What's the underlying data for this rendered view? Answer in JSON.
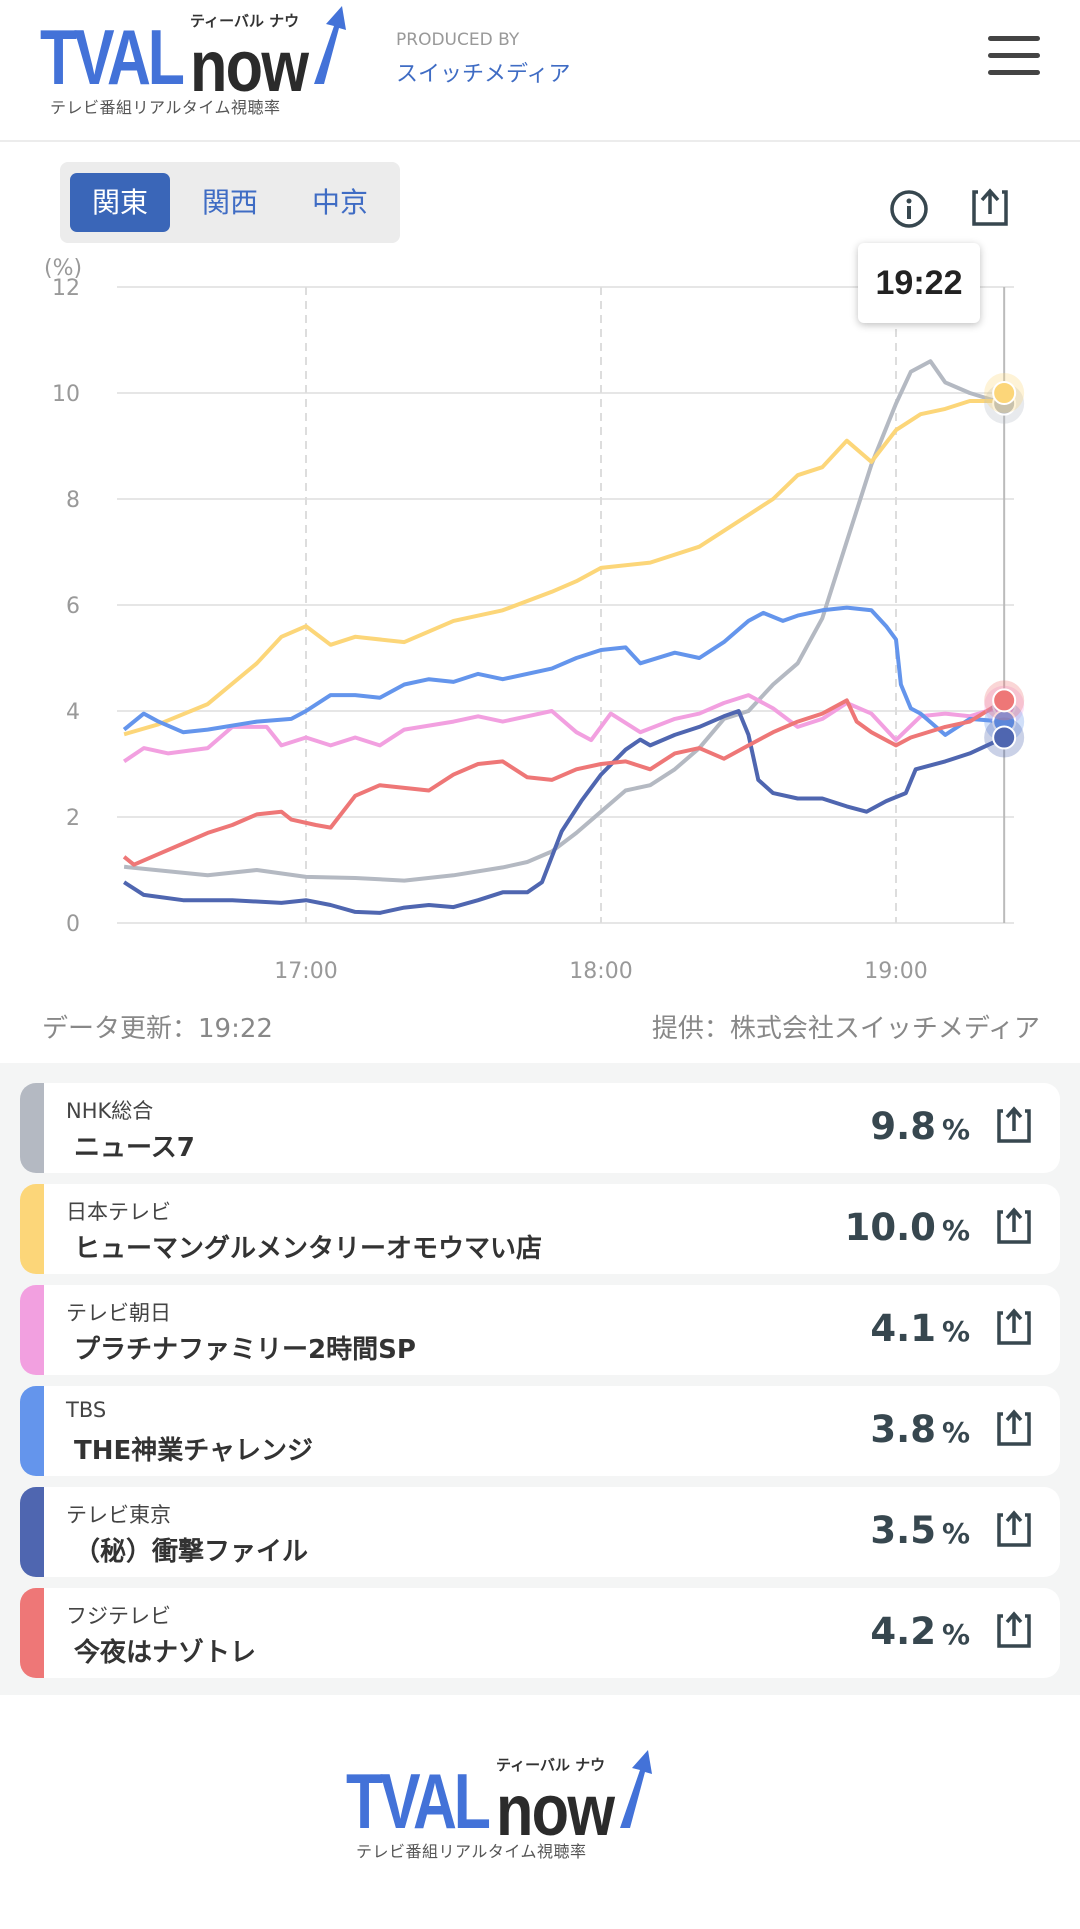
{
  "header": {
    "logo_text": "TVALnow",
    "logo_kana": "ティーバル ナウ",
    "logo_sub": "テレビ番組リアルタイム視聴率",
    "produced_by": "PRODUCED BY",
    "producer": "スイッチメディア"
  },
  "tabs": [
    {
      "label": "関東",
      "active": true
    },
    {
      "label": "関西",
      "active": false
    },
    {
      "label": "中京",
      "active": false
    }
  ],
  "tooltip": "19:22",
  "footer_info": {
    "update": "データ更新：19:22",
    "credit": "提供：株式会社スイッチメディア"
  },
  "chart_data": {
    "type": "line",
    "ylabel": "(%)",
    "ylim": [
      0,
      12
    ],
    "yticks": [
      "0",
      "2",
      "4",
      "6",
      "8",
      "10",
      "12"
    ],
    "xlim_minutes_after_1600": [
      23,
      202
    ],
    "xticks": [
      {
        "label": "17:00",
        "t": 60
      },
      {
        "label": "18:00",
        "t": 120
      },
      {
        "label": "19:00",
        "t": 180
      }
    ],
    "cursor_t": 202,
    "series": [
      {
        "name": "NHK総合",
        "color": "#b4b9c2",
        "t": [
          23,
          40,
          50,
          60,
          70,
          80,
          90,
          100,
          105,
          110,
          115,
          120,
          125,
          130,
          135,
          140,
          145,
          150,
          155,
          160,
          165,
          170,
          175,
          180,
          183,
          187,
          190,
          195,
          202
        ],
        "v": [
          1.06,
          0.9,
          1.0,
          0.87,
          0.85,
          0.8,
          0.9,
          1.05,
          1.15,
          1.35,
          1.7,
          2.1,
          2.5,
          2.6,
          2.9,
          3.3,
          3.85,
          4.0,
          4.5,
          4.9,
          5.75,
          7.2,
          8.65,
          9.8,
          10.4,
          10.6,
          10.2,
          10.0,
          9.8
        ]
      },
      {
        "name": "日本テレビ",
        "color": "#fcd679",
        "t": [
          23,
          30,
          40,
          50,
          55,
          60,
          65,
          70,
          80,
          90,
          100,
          110,
          115,
          120,
          130,
          140,
          145,
          150,
          155,
          160,
          165,
          170,
          175,
          180,
          185,
          190,
          195,
          200,
          202
        ],
        "v": [
          3.56,
          3.75,
          4.13,
          4.9,
          5.4,
          5.6,
          5.25,
          5.4,
          5.3,
          5.7,
          5.9,
          6.25,
          6.45,
          6.7,
          6.8,
          7.1,
          7.4,
          7.7,
          8.0,
          8.45,
          8.6,
          9.1,
          8.7,
          9.3,
          9.6,
          9.7,
          9.85,
          9.85,
          10.0
        ]
      },
      {
        "name": "テレビ朝日",
        "color": "#f2a0e0",
        "t": [
          23,
          27,
          32,
          40,
          45,
          52,
          55,
          60,
          65,
          70,
          75,
          80,
          90,
          95,
          100,
          105,
          110,
          115,
          118,
          122,
          128,
          135,
          140,
          145,
          150,
          155,
          160,
          165,
          170,
          175,
          180,
          185,
          190,
          195,
          202
        ],
        "v": [
          3.05,
          3.3,
          3.2,
          3.3,
          3.7,
          3.7,
          3.35,
          3.5,
          3.35,
          3.5,
          3.35,
          3.65,
          3.8,
          3.9,
          3.8,
          3.9,
          4.0,
          3.6,
          3.45,
          3.95,
          3.6,
          3.85,
          3.95,
          4.15,
          4.3,
          4.05,
          3.7,
          3.85,
          4.15,
          3.95,
          3.45,
          3.9,
          3.95,
          3.9,
          4.1
        ]
      },
      {
        "name": "TBS",
        "color": "#6495ec",
        "t": [
          23,
          27,
          30,
          35,
          40,
          50,
          57,
          60,
          65,
          70,
          75,
          80,
          85,
          90,
          95,
          100,
          110,
          115,
          120,
          125,
          128,
          135,
          140,
          145,
          150,
          153,
          157,
          160,
          165,
          170,
          175,
          178,
          180,
          181,
          183,
          185,
          190,
          195,
          202
        ],
        "v": [
          3.65,
          3.95,
          3.8,
          3.6,
          3.65,
          3.8,
          3.85,
          4.0,
          4.3,
          4.3,
          4.25,
          4.5,
          4.6,
          4.55,
          4.7,
          4.6,
          4.8,
          5.0,
          5.15,
          5.2,
          4.9,
          5.1,
          5.0,
          5.3,
          5.7,
          5.85,
          5.7,
          5.8,
          5.9,
          5.95,
          5.9,
          5.6,
          5.35,
          4.5,
          4.05,
          3.95,
          3.55,
          3.85,
          3.8
        ]
      },
      {
        "name": "テレビ東京",
        "color": "#4f66b0",
        "t": [
          23,
          27,
          35,
          45,
          55,
          60,
          65,
          70,
          75,
          80,
          85,
          90,
          95,
          100,
          105,
          108,
          112,
          116,
          120,
          125,
          128,
          130,
          135,
          140,
          145,
          148,
          150,
          152,
          155,
          160,
          165,
          170,
          174,
          178,
          182,
          184,
          190,
          195,
          202
        ],
        "v": [
          0.77,
          0.53,
          0.43,
          0.43,
          0.38,
          0.43,
          0.34,
          0.21,
          0.19,
          0.29,
          0.34,
          0.3,
          0.43,
          0.58,
          0.58,
          0.77,
          1.73,
          2.3,
          2.8,
          3.27,
          3.46,
          3.35,
          3.55,
          3.7,
          3.9,
          4.0,
          3.55,
          2.7,
          2.45,
          2.35,
          2.35,
          2.2,
          2.1,
          2.3,
          2.45,
          2.9,
          3.05,
          3.2,
          3.5
        ]
      },
      {
        "name": "フジテレビ",
        "color": "#ee7777",
        "t": [
          23,
          25,
          30,
          35,
          40,
          45,
          50,
          55,
          57,
          62,
          65,
          70,
          75,
          80,
          85,
          90,
          95,
          100,
          105,
          110,
          115,
          120,
          125,
          130,
          135,
          140,
          145,
          150,
          155,
          160,
          165,
          170,
          172,
          175,
          180,
          183,
          190,
          195,
          202
        ],
        "v": [
          1.25,
          1.1,
          1.3,
          1.5,
          1.7,
          1.85,
          2.05,
          2.1,
          1.95,
          1.85,
          1.8,
          2.4,
          2.6,
          2.55,
          2.5,
          2.8,
          3.0,
          3.05,
          2.75,
          2.7,
          2.9,
          3.0,
          3.05,
          2.9,
          3.2,
          3.3,
          3.1,
          3.35,
          3.6,
          3.8,
          3.95,
          4.2,
          3.8,
          3.6,
          3.35,
          3.5,
          3.7,
          3.8,
          4.2
        ]
      }
    ]
  },
  "ratings": [
    {
      "channel": "NHK総合",
      "program": "ニュース7",
      "value": "9.8",
      "unit": "%",
      "color": "#b4b9c2"
    },
    {
      "channel": "日本テレビ",
      "program": "ヒューマングルメンタリーオモウマい店",
      "value": "10.0",
      "unit": "%",
      "color": "#fcd679"
    },
    {
      "channel": "テレビ朝日",
      "program": "プラチナファミリー2時間SP",
      "value": "4.1",
      "unit": "%",
      "color": "#f2a0e0"
    },
    {
      "channel": "TBS",
      "program": "THE神業チャレンジ",
      "value": "3.8",
      "unit": "%",
      "color": "#6495ec"
    },
    {
      "channel": "テレビ東京",
      "program": "（秘）衝撃ファイル",
      "value": "3.5",
      "unit": "%",
      "color": "#4f66b0"
    },
    {
      "channel": "フジテレビ",
      "program": "今夜はナゾトレ",
      "value": "4.2",
      "unit": "%",
      "color": "#ee7777"
    }
  ]
}
